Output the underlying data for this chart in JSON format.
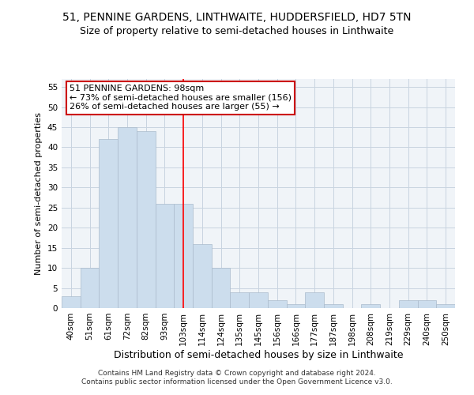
{
  "title1": "51, PENNINE GARDENS, LINTHWAITE, HUDDERSFIELD, HD7 5TN",
  "title2": "Size of property relative to semi-detached houses in Linthwaite",
  "xlabel": "Distribution of semi-detached houses by size in Linthwaite",
  "ylabel": "Number of semi-detached properties",
  "categories": [
    "40sqm",
    "51sqm",
    "61sqm",
    "72sqm",
    "82sqm",
    "93sqm",
    "103sqm",
    "114sqm",
    "124sqm",
    "135sqm",
    "145sqm",
    "156sqm",
    "166sqm",
    "177sqm",
    "187sqm",
    "198sqm",
    "208sqm",
    "219sqm",
    "229sqm",
    "240sqm",
    "250sqm"
  ],
  "values": [
    3,
    10,
    42,
    45,
    44,
    26,
    26,
    16,
    10,
    4,
    4,
    2,
    1,
    4,
    1,
    0,
    1,
    0,
    2,
    2,
    1
  ],
  "bar_color": "#ccdded",
  "bar_edge_color": "#aabbcc",
  "red_line_index": 6,
  "ylim": [
    0,
    57
  ],
  "yticks": [
    0,
    5,
    10,
    15,
    20,
    25,
    30,
    35,
    40,
    45,
    50,
    55
  ],
  "annotation_line1": "51 PENNINE GARDENS: 98sqm",
  "annotation_line2": "← 73% of semi-detached houses are smaller (156)",
  "annotation_line3": "26% of semi-detached houses are larger (55) →",
  "annotation_box_color": "#ffffff",
  "annotation_box_edge": "#cc0000",
  "footer_text": "Contains HM Land Registry data © Crown copyright and database right 2024.\nContains public sector information licensed under the Open Government Licence v3.0.",
  "title1_fontsize": 10,
  "title2_fontsize": 9,
  "xlabel_fontsize": 9,
  "ylabel_fontsize": 8,
  "tick_fontsize": 7.5,
  "annotation_fontsize": 8,
  "footer_fontsize": 6.5,
  "bg_color": "#f0f4f8"
}
